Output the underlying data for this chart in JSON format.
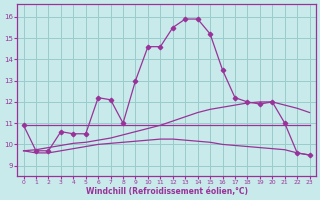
{
  "background_color": "#c8eaea",
  "grid_color": "#99cccc",
  "line_color": "#993399",
  "xlabel": "Windchill (Refroidissement éolien,°C)",
  "x_ticks": [
    0,
    1,
    2,
    3,
    4,
    5,
    6,
    7,
    8,
    9,
    10,
    11,
    12,
    13,
    14,
    15,
    16,
    17,
    18,
    19,
    20,
    21,
    22,
    23
  ],
  "y_ticks": [
    9,
    10,
    11,
    12,
    13,
    14,
    15,
    16
  ],
  "ylim": [
    8.5,
    16.6
  ],
  "xlim": [
    -0.5,
    23.5
  ],
  "y_main": [
    10.9,
    9.7,
    9.7,
    10.6,
    10.5,
    10.5,
    12.2,
    12.1,
    11.0,
    13.0,
    14.6,
    14.6,
    15.5,
    15.9,
    15.9,
    15.2,
    13.5,
    12.2,
    12.0,
    11.9,
    12.0,
    11.0,
    9.6,
    9.5
  ],
  "y_flat": [
    10.9,
    10.9,
    10.9,
    10.9,
    10.9,
    10.9,
    10.9,
    10.9,
    10.9,
    10.9,
    10.9,
    10.9,
    10.9,
    10.9,
    10.9,
    10.9,
    10.9,
    10.9,
    10.9,
    10.9,
    10.9,
    10.9,
    10.9,
    10.9
  ],
  "y_diag": [
    9.7,
    9.75,
    9.85,
    9.95,
    10.05,
    10.1,
    10.2,
    10.3,
    10.45,
    10.6,
    10.75,
    10.9,
    11.1,
    11.3,
    11.5,
    11.65,
    11.75,
    11.85,
    11.95,
    12.0,
    12.0,
    11.85,
    11.7,
    11.5
  ],
  "y_low": [
    9.7,
    9.6,
    9.6,
    9.7,
    9.8,
    9.9,
    10.0,
    10.05,
    10.1,
    10.15,
    10.2,
    10.25,
    10.25,
    10.2,
    10.15,
    10.1,
    10.0,
    9.95,
    9.9,
    9.85,
    9.8,
    9.75,
    9.6,
    9.5
  ]
}
